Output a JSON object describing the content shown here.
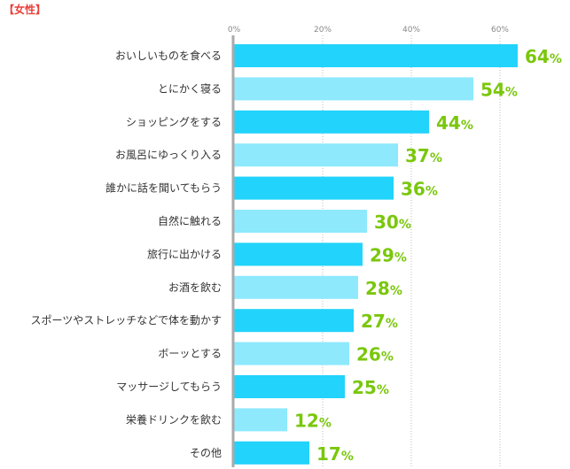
{
  "title": "【女性】",
  "chart_data": {
    "type": "bar",
    "orientation": "horizontal",
    "categories": [
      "おいしいものを食べる",
      "とにかく寝る",
      "ショッピングをする",
      "お風呂にゆっくり入る",
      "誰かに話を聞いてもらう",
      "自然に触れる",
      "旅行に出かける",
      "お酒を飲む",
      "スポーツやストレッチなどで体を動かす",
      "ボーッとする",
      "マッサージしてもらう",
      "栄養ドリンクを飲む",
      "その他"
    ],
    "values": [
      64,
      54,
      44,
      37,
      36,
      30,
      29,
      28,
      27,
      26,
      25,
      12,
      17
    ],
    "unit": "%",
    "xlim": [
      0,
      70
    ],
    "ticks": [
      0,
      20,
      40,
      60
    ],
    "tick_labels": [
      "0%",
      "20%",
      "40%",
      "60%"
    ],
    "grid": true,
    "colors": {
      "bar_primary": "#22d3fb",
      "bar_alternate": "#8ee9fd",
      "value_text": "#7ac70c",
      "axis": "#aaaaaa",
      "grid": "#bbbbbb"
    }
  }
}
